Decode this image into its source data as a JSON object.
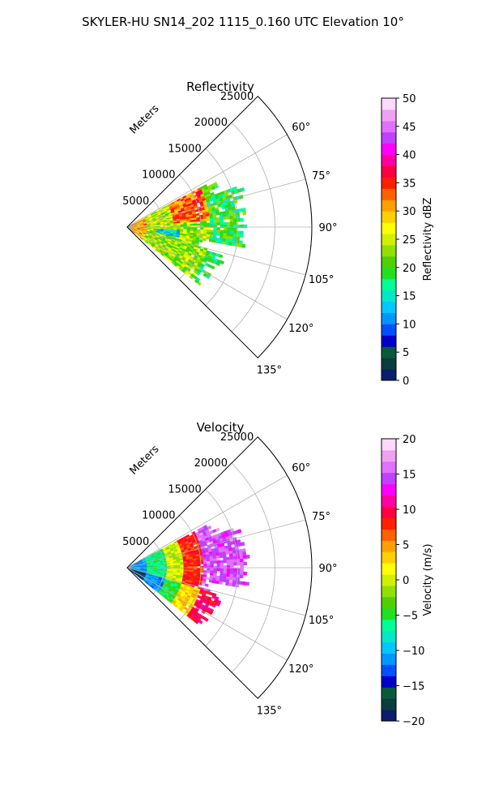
{
  "figure": {
    "title": "SKYLER-HU  SN14_202  1115_0.160 UTC Elevation 10°"
  },
  "chart_data": [
    {
      "type": "heatmap",
      "title": "Reflectivity",
      "projection": "polar-sector",
      "theta_range_deg": [
        45,
        135
      ],
      "theta_ticks": [
        "60°",
        "75°",
        "90°",
        "105°",
        "120°",
        "135°"
      ],
      "theta_tick_values": [
        60,
        75,
        90,
        105,
        120,
        135
      ],
      "radial_label": "Meters",
      "r_ticks": [
        "5000",
        "10000",
        "15000",
        "20000",
        "25000"
      ],
      "r_tick_values": [
        5000,
        10000,
        15000,
        20000,
        25000
      ],
      "r_max": 25000,
      "data_theta_range_deg": [
        60,
        130
      ],
      "data_r_range_m": [
        0,
        16500
      ],
      "grid": true,
      "colorbar": {
        "label": "Reflectivity dBZ",
        "range": [
          0,
          50
        ],
        "ticks": [
          "0",
          "5",
          "10",
          "15",
          "20",
          "25",
          "30",
          "35",
          "40",
          "45",
          "50"
        ],
        "tick_values": [
          0,
          5,
          10,
          15,
          20,
          25,
          30,
          35,
          40,
          45,
          50
        ]
      },
      "colors": [
        "#0b1e6e",
        "#0a3d3d",
        "#0a5a3a",
        "#0000c8",
        "#0050ff",
        "#0096ff",
        "#00c8ff",
        "#00e8c8",
        "#00ff96",
        "#20e020",
        "#50d000",
        "#90e000",
        "#d0f000",
        "#ffff00",
        "#ffd000",
        "#ffa000",
        "#ff6000",
        "#ff2000",
        "#ff0040",
        "#ff00a0",
        "#ff00ff",
        "#c040ff",
        "#e070ff",
        "#f0a0f0",
        "#ffd8ff"
      ]
    },
    {
      "type": "heatmap",
      "title": "Velocity",
      "projection": "polar-sector",
      "theta_range_deg": [
        45,
        135
      ],
      "theta_ticks": [
        "60°",
        "75°",
        "90°",
        "105°",
        "120°",
        "135°"
      ],
      "theta_tick_values": [
        60,
        75,
        90,
        105,
        120,
        135
      ],
      "radial_label": "Meters",
      "r_ticks": [
        "5000",
        "10000",
        "15000",
        "20000",
        "25000"
      ],
      "r_tick_values": [
        5000,
        10000,
        15000,
        20000,
        25000
      ],
      "r_max": 25000,
      "data_theta_range_deg": [
        60,
        130
      ],
      "data_r_range_m": [
        0,
        16500
      ],
      "grid": true,
      "colorbar": {
        "label": "Velocity (m/s)",
        "range": [
          -20,
          20
        ],
        "ticks": [
          "−20",
          "−15",
          "−10",
          "−5",
          "0",
          "5",
          "10",
          "15",
          "20"
        ],
        "tick_values": [
          -20,
          -15,
          -10,
          -5,
          0,
          5,
          10,
          15,
          20
        ]
      },
      "colors": [
        "#0b1e6e",
        "#0a3d3d",
        "#0a5a3a",
        "#0000c8",
        "#0050ff",
        "#0096ff",
        "#00c8ff",
        "#00e8c8",
        "#00ff96",
        "#20e020",
        "#50d000",
        "#90e000",
        "#d0f000",
        "#ffff00",
        "#ffd000",
        "#ffa000",
        "#ff6000",
        "#ff2000",
        "#ff0040",
        "#ff00a0",
        "#ff00ff",
        "#c040ff",
        "#e070ff",
        "#f0a0f0",
        "#ffd8ff"
      ]
    }
  ]
}
